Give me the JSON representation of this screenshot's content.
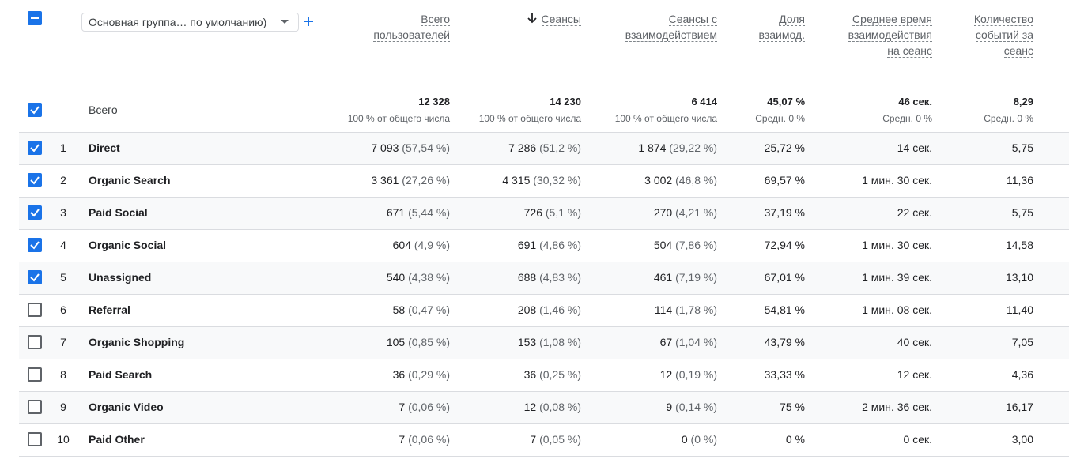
{
  "header": {
    "group_selector": "Основная группа… по умолчанию)",
    "columns": [
      {
        "lines": [
          "Всего",
          "пользователей"
        ]
      },
      {
        "lines": [
          "Сеансы"
        ],
        "sorted": true
      },
      {
        "lines": [
          "Сеансы с",
          "взаимодействием"
        ]
      },
      {
        "lines": [
          "Доля",
          "взаимод."
        ]
      },
      {
        "lines": [
          "Среднее время",
          "взаимодействия",
          "на сеанс"
        ]
      },
      {
        "lines": [
          "Количество",
          "событий за",
          "сеанс"
        ]
      }
    ]
  },
  "totals": {
    "label": "Всего",
    "cells": [
      {
        "value": "12 328",
        "note": "100 % от общего числа"
      },
      {
        "value": "14 230",
        "note": "100 % от общего числа"
      },
      {
        "value": "6 414",
        "note": "100 % от общего числа"
      },
      {
        "value": "45,07 %",
        "note": "Средн. 0 %"
      },
      {
        "value": "46 сек.",
        "note": "Средн. 0 %"
      },
      {
        "value": "8,29",
        "note": "Средн. 0 %"
      }
    ]
  },
  "rows": [
    {
      "index": 1,
      "name": "Direct",
      "checked": true,
      "cells": [
        [
          "7 093",
          "(57,54 %)"
        ],
        [
          "7 286",
          "(51,2 %)"
        ],
        [
          "1 874",
          "(29,22 %)"
        ],
        [
          "25,72 %"
        ],
        [
          "14 сек."
        ],
        [
          "5,75"
        ]
      ]
    },
    {
      "index": 2,
      "name": "Organic Search",
      "checked": true,
      "cells": [
        [
          "3 361",
          "(27,26 %)"
        ],
        [
          "4 315",
          "(30,32 %)"
        ],
        [
          "3 002",
          "(46,8 %)"
        ],
        [
          "69,57 %"
        ],
        [
          "1 мин. 30 сек."
        ],
        [
          "11,36"
        ]
      ]
    },
    {
      "index": 3,
      "name": "Paid Social",
      "checked": true,
      "cells": [
        [
          "671",
          "(5,44 %)"
        ],
        [
          "726",
          "(5,1 %)"
        ],
        [
          "270",
          "(4,21 %)"
        ],
        [
          "37,19 %"
        ],
        [
          "22 сек."
        ],
        [
          "5,75"
        ]
      ]
    },
    {
      "index": 4,
      "name": "Organic Social",
      "checked": true,
      "cells": [
        [
          "604",
          "(4,9 %)"
        ],
        [
          "691",
          "(4,86 %)"
        ],
        [
          "504",
          "(7,86 %)"
        ],
        [
          "72,94 %"
        ],
        [
          "1 мин. 30 сек."
        ],
        [
          "14,58"
        ]
      ]
    },
    {
      "index": 5,
      "name": "Unassigned",
      "checked": true,
      "cells": [
        [
          "540",
          "(4,38 %)"
        ],
        [
          "688",
          "(4,83 %)"
        ],
        [
          "461",
          "(7,19 %)"
        ],
        [
          "67,01 %"
        ],
        [
          "1 мин. 39 сек."
        ],
        [
          "13,10"
        ]
      ]
    },
    {
      "index": 6,
      "name": "Referral",
      "checked": false,
      "cells": [
        [
          "58",
          "(0,47 %)"
        ],
        [
          "208",
          "(1,46 %)"
        ],
        [
          "114",
          "(1,78 %)"
        ],
        [
          "54,81 %"
        ],
        [
          "1 мин. 08 сек."
        ],
        [
          "11,40"
        ]
      ]
    },
    {
      "index": 7,
      "name": "Organic Shopping",
      "checked": false,
      "cells": [
        [
          "105",
          "(0,85 %)"
        ],
        [
          "153",
          "(1,08 %)"
        ],
        [
          "67",
          "(1,04 %)"
        ],
        [
          "43,79 %"
        ],
        [
          "40 сек."
        ],
        [
          "7,05"
        ]
      ]
    },
    {
      "index": 8,
      "name": "Paid Search",
      "checked": false,
      "cells": [
        [
          "36",
          "(0,29 %)"
        ],
        [
          "36",
          "(0,25 %)"
        ],
        [
          "12",
          "(0,19 %)"
        ],
        [
          "33,33 %"
        ],
        [
          "12 сек."
        ],
        [
          "4,36"
        ]
      ]
    },
    {
      "index": 9,
      "name": "Organic Video",
      "checked": false,
      "cells": [
        [
          "7",
          "(0,06 %)"
        ],
        [
          "12",
          "(0,08 %)"
        ],
        [
          "9",
          "(0,14 %)"
        ],
        [
          "75 %"
        ],
        [
          "2 мин. 36 сек."
        ],
        [
          "16,17"
        ]
      ]
    },
    {
      "index": 10,
      "name": "Paid Other",
      "checked": false,
      "cells": [
        [
          "7",
          "(0,06 %)"
        ],
        [
          "7",
          "(0,05 %)"
        ],
        [
          "0",
          "(0 %)"
        ],
        [
          "0 %"
        ],
        [
          "0 сек."
        ],
        [
          "3,00"
        ]
      ]
    }
  ]
}
